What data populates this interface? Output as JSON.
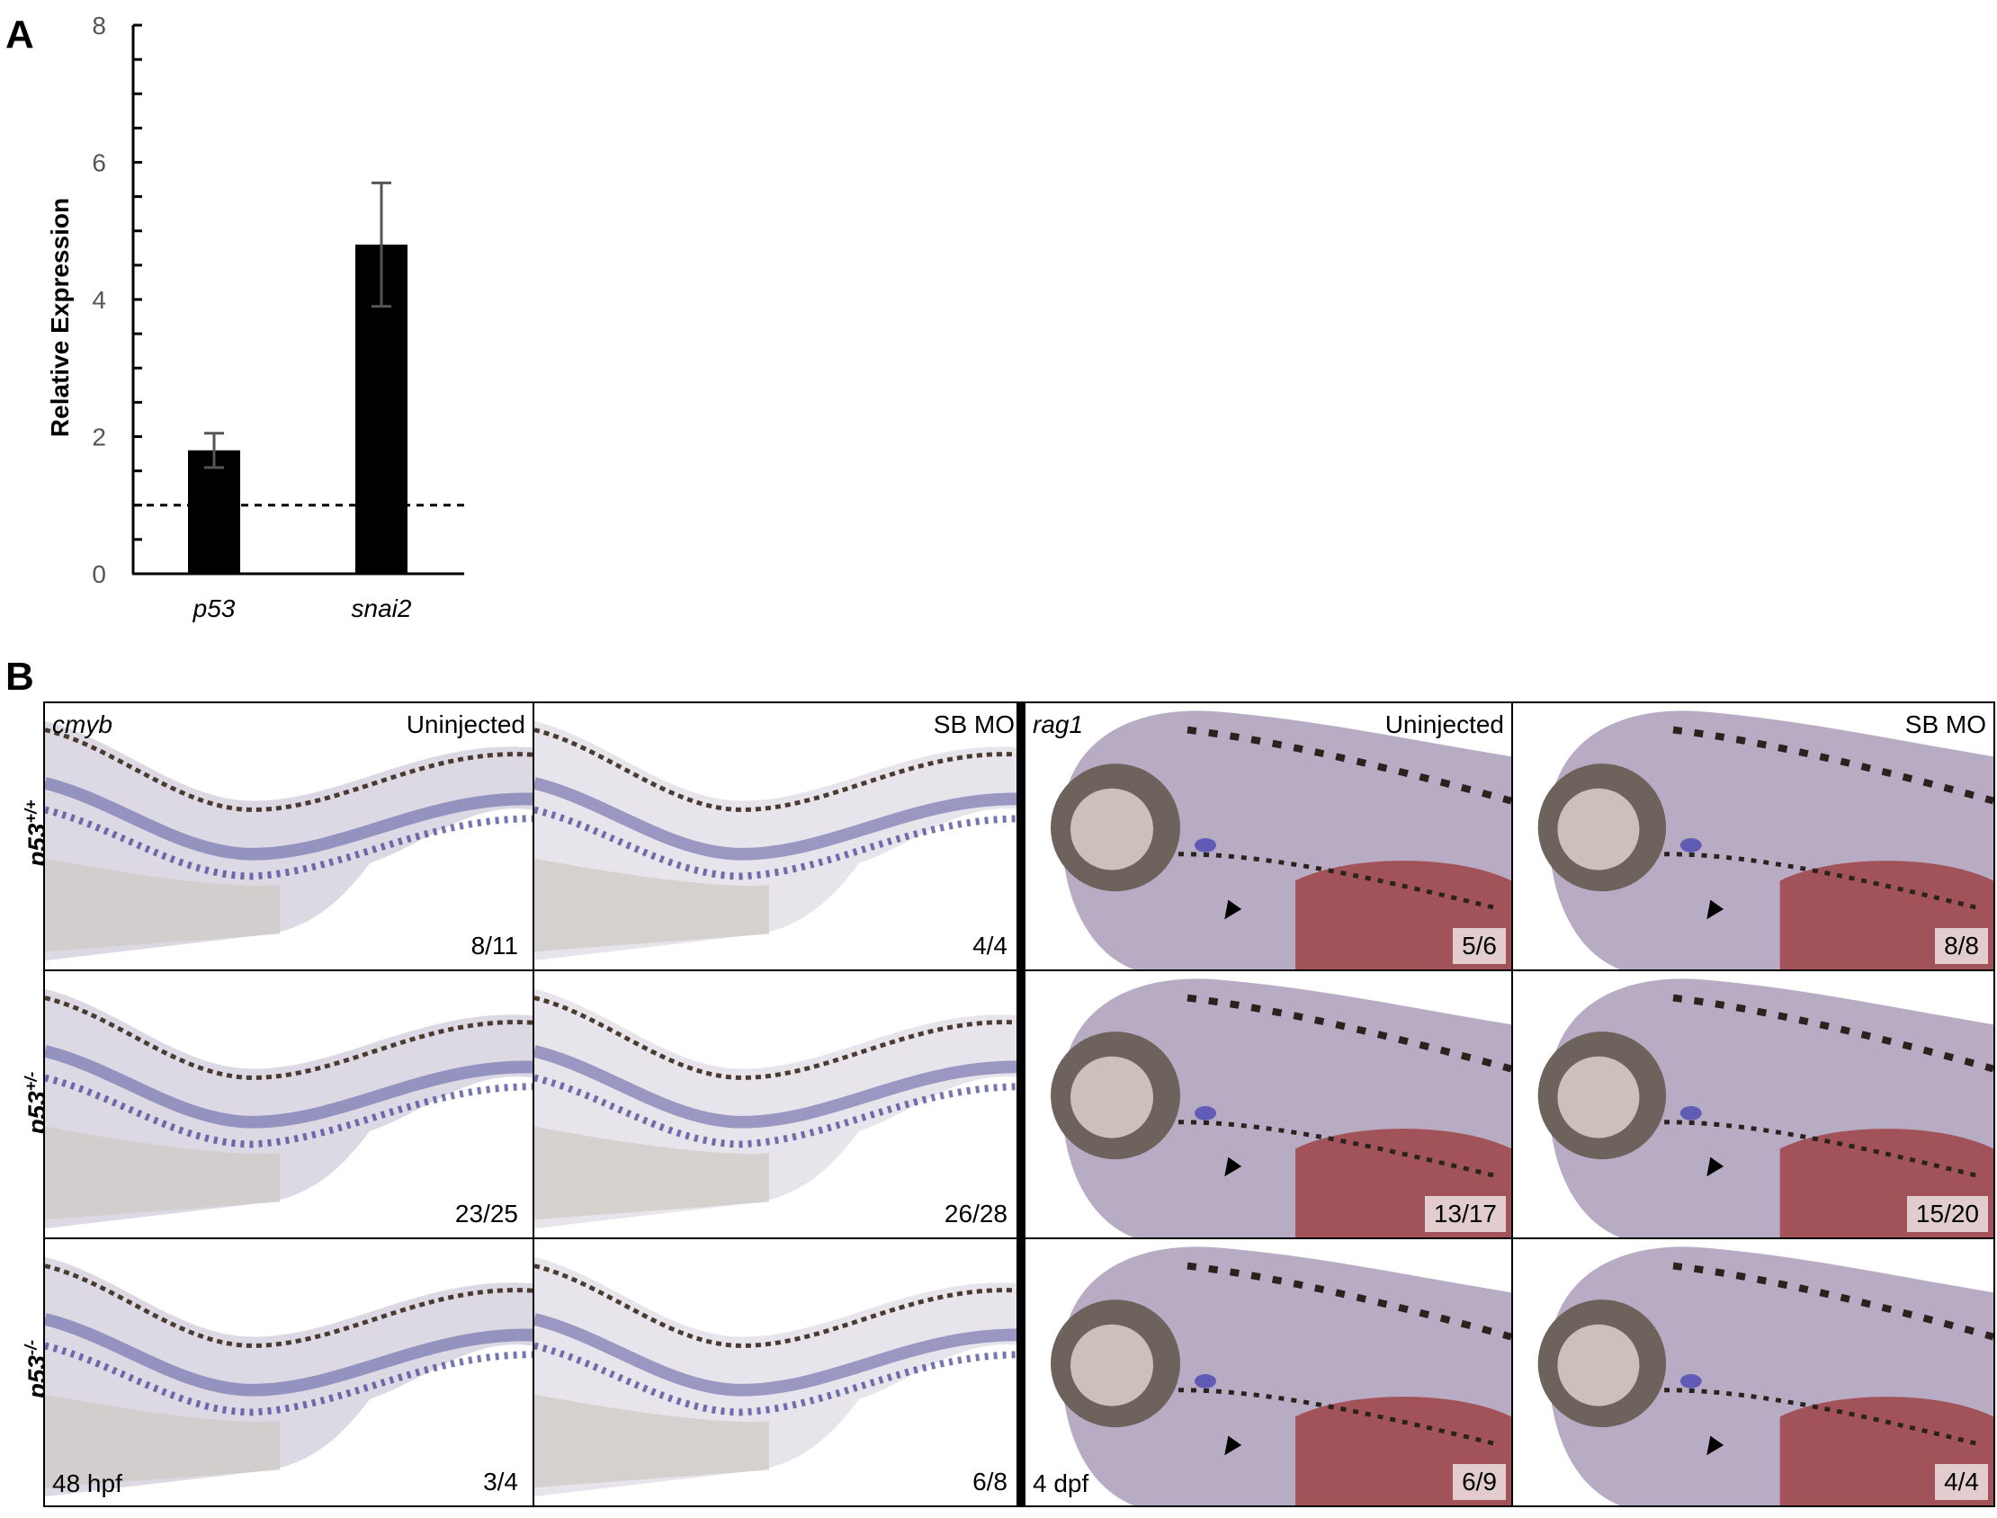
{
  "panel_a": {
    "letter": "A"
  },
  "panel_b": {
    "letter": "B"
  },
  "chart_data": {
    "type": "bar",
    "categories": [
      "p53",
      "snai2"
    ],
    "values": [
      1.8,
      4.8
    ],
    "errors": [
      0.25,
      0.9
    ],
    "reference_line": 1,
    "ylabel": "Relative Expression",
    "xlabel": "",
    "title": "",
    "ylim": [
      0,
      8
    ],
    "yticks": [
      0,
      2,
      4,
      6,
      8
    ],
    "grid": false
  },
  "grid": {
    "columns": [
      {
        "gene": "cmyb",
        "condition": "Uninjected"
      },
      {
        "gene": "",
        "condition": "SB MO"
      },
      {
        "gene": "rag1",
        "condition": "Uninjected"
      },
      {
        "gene": "",
        "condition": "SB MO"
      }
    ],
    "rows": [
      {
        "genotype": "p53",
        "sup": "+/+"
      },
      {
        "genotype": "p53",
        "sup": "+/-"
      },
      {
        "genotype": "p53",
        "sup": "-/-"
      }
    ],
    "counts": [
      [
        "8/11",
        "4/4",
        "5/6",
        "8/8"
      ],
      [
        "23/25",
        "26/28",
        "13/17",
        "15/20"
      ],
      [
        "3/4",
        "6/8",
        "6/9",
        "4/4"
      ]
    ],
    "stage_labels": {
      "left": "48 hpf",
      "right": "4 dpf"
    }
  }
}
